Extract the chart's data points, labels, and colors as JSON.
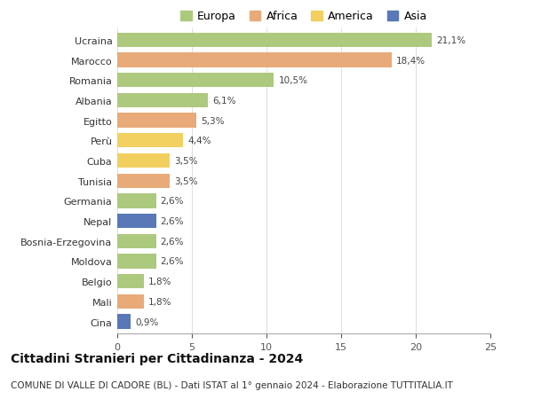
{
  "countries": [
    "Ucraina",
    "Marocco",
    "Romania",
    "Albania",
    "Egitto",
    "Perù",
    "Cuba",
    "Tunisia",
    "Germania",
    "Nepal",
    "Bosnia-Erzegovina",
    "Moldova",
    "Belgio",
    "Mali",
    "Cina"
  ],
  "values": [
    21.1,
    18.4,
    10.5,
    6.1,
    5.3,
    4.4,
    3.5,
    3.5,
    2.6,
    2.6,
    2.6,
    2.6,
    1.8,
    1.8,
    0.9
  ],
  "labels": [
    "21,1%",
    "18,4%",
    "10,5%",
    "6,1%",
    "5,3%",
    "4,4%",
    "3,5%",
    "3,5%",
    "2,6%",
    "2,6%",
    "2,6%",
    "2,6%",
    "1,8%",
    "1,8%",
    "0,9%"
  ],
  "continents": [
    "Europa",
    "Africa",
    "Europa",
    "Europa",
    "Africa",
    "America",
    "America",
    "Africa",
    "Europa",
    "Asia",
    "Europa",
    "Europa",
    "Europa",
    "Africa",
    "Asia"
  ],
  "continent_colors": {
    "Europa": "#adc97e",
    "Africa": "#e8aa78",
    "America": "#f2d060",
    "Asia": "#5878b8"
  },
  "legend_order": [
    "Europa",
    "Africa",
    "America",
    "Asia"
  ],
  "title": "Cittadini Stranieri per Cittadinanza - 2024",
  "subtitle": "COMUNE DI VALLE DI CADORE (BL) - Dati ISTAT al 1° gennaio 2024 - Elaborazione TUTTITALIA.IT",
  "xlim": [
    0,
    25
  ],
  "xticks": [
    0,
    5,
    10,
    15,
    20,
    25
  ],
  "background_color": "#ffffff",
  "bar_height": 0.72,
  "title_fontsize": 10,
  "subtitle_fontsize": 7.5,
  "label_fontsize": 7.5,
  "tick_fontsize": 8,
  "legend_fontsize": 9
}
